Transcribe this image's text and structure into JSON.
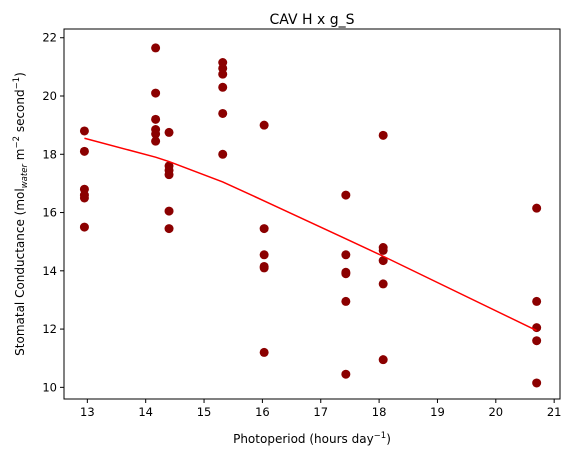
{
  "chart_data": {
    "type": "scatter",
    "title": "CAV H x g_S",
    "xlabel": "Photoperiod (hours day",
    "xlabel_sup": "−1",
    "xlabel_close": ")",
    "ylabel": "Stomatal Conductance (mol",
    "ylabel_sub": "water",
    "ylabel_mid": " m",
    "ylabel_sup1": "−2",
    "ylabel_mid2": " second",
    "ylabel_sup2": "−1",
    "ylabel_close": ")",
    "xlim": [
      12.6,
      21.1
    ],
    "ylim": [
      9.6,
      22.3
    ],
    "xticks": [
      13,
      14,
      15,
      16,
      17,
      18,
      19,
      20,
      21
    ],
    "yticks": [
      10,
      12,
      14,
      16,
      18,
      20,
      22
    ],
    "grid": false,
    "colors": {
      "points": "#8b0000",
      "line": "#ff0000"
    },
    "points": [
      [
        12.95,
        18.8
      ],
      [
        12.95,
        18.1
      ],
      [
        12.95,
        16.8
      ],
      [
        12.95,
        16.6
      ],
      [
        12.95,
        16.5
      ],
      [
        12.95,
        15.5
      ],
      [
        14.17,
        21.65
      ],
      [
        14.17,
        20.1
      ],
      [
        14.17,
        19.2
      ],
      [
        14.17,
        18.85
      ],
      [
        14.17,
        18.7
      ],
      [
        14.17,
        18.45
      ],
      [
        14.4,
        18.75
      ],
      [
        14.4,
        17.6
      ],
      [
        14.4,
        17.45
      ],
      [
        14.4,
        17.3
      ],
      [
        14.4,
        16.05
      ],
      [
        14.4,
        15.45
      ],
      [
        15.32,
        21.15
      ],
      [
        15.32,
        20.95
      ],
      [
        15.32,
        20.75
      ],
      [
        15.32,
        20.3
      ],
      [
        15.32,
        19.4
      ],
      [
        15.32,
        18.0
      ],
      [
        16.03,
        19.0
      ],
      [
        16.03,
        15.45
      ],
      [
        16.03,
        14.55
      ],
      [
        16.03,
        14.15
      ],
      [
        16.03,
        14.1
      ],
      [
        16.03,
        11.2
      ],
      [
        17.43,
        16.6
      ],
      [
        17.43,
        14.55
      ],
      [
        17.43,
        13.95
      ],
      [
        17.43,
        13.9
      ],
      [
        17.43,
        12.95
      ],
      [
        17.43,
        10.45
      ],
      [
        18.07,
        18.65
      ],
      [
        18.07,
        14.8
      ],
      [
        18.07,
        14.7
      ],
      [
        18.07,
        14.35
      ],
      [
        18.07,
        13.55
      ],
      [
        18.07,
        10.95
      ],
      [
        20.7,
        16.15
      ],
      [
        20.7,
        12.95
      ],
      [
        20.7,
        12.05
      ],
      [
        20.7,
        11.6
      ],
      [
        20.7,
        10.15
      ]
    ],
    "trend_line": {
      "x": [
        12.95,
        14.17,
        14.4,
        15.32,
        16.03,
        17.43,
        18.07,
        20.7
      ],
      "y": [
        18.55,
        17.9,
        17.75,
        17.05,
        16.4,
        15.1,
        14.5,
        11.95
      ]
    }
  }
}
